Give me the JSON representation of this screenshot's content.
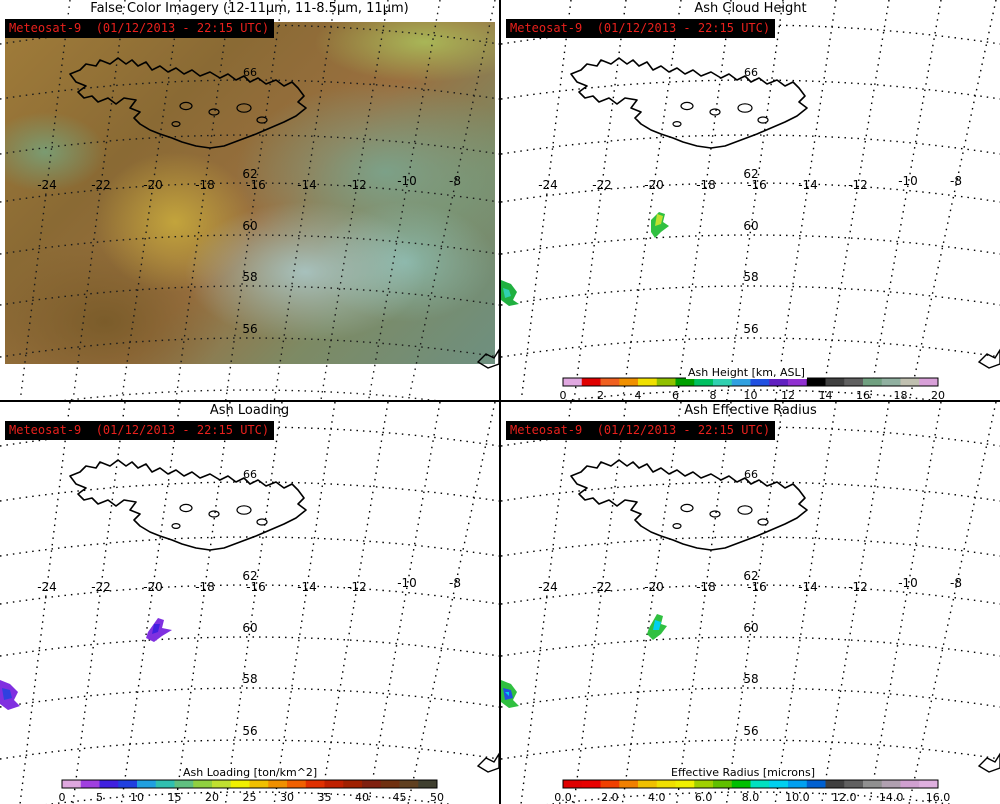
{
  "panels": [
    {
      "id": "p1",
      "title": "False Color Imagery (12-11μm, 11-8.5μm, 11μm)",
      "badge": "Meteosat-9  (01/12/2013 - 22:15 UTC)"
    },
    {
      "id": "p2",
      "title": "Ash Cloud Height",
      "badge": "Meteosat-9  (01/12/2013 - 22:15 UTC)"
    },
    {
      "id": "p3",
      "title": "Ash Loading",
      "badge": "Meteosat-9  (01/12/2013 - 22:15 UTC)"
    },
    {
      "id": "p4",
      "title": "Ash Effective Radius",
      "badge": "Meteosat-9  (01/12/2013 - 22:15 UTC)"
    }
  ],
  "lon_labels": [
    "-24",
    "-22",
    "-20",
    "-18",
    "-16",
    "-14",
    "-12",
    "-10",
    "-8"
  ],
  "lat_labels": [
    "62",
    "60",
    "58",
    "56"
  ],
  "top_lat_label": "66",
  "colorbars": {
    "height": {
      "title": "Ash Height [km, ASL]",
      "ticks": [
        "0",
        "2",
        "4",
        "6",
        "8",
        "10",
        "12",
        "14",
        "16",
        "18",
        "20"
      ],
      "colors": [
        "#e0a8e0",
        "#e00000",
        "#f06020",
        "#f09000",
        "#f0e000",
        "#90c000",
        "#00a000",
        "#00c060",
        "#30d0b0",
        "#30a0e0",
        "#2050e0",
        "#6020c0",
        "#9030d0",
        "#000000",
        "#404040",
        "#606060",
        "#70a080",
        "#90b0a0",
        "#c0c0b0",
        "#d8a0d8"
      ]
    },
    "loading": {
      "title": "Ash Loading [ton/km^2]",
      "ticks": [
        "0",
        "5",
        "10",
        "15",
        "20",
        "25",
        "30",
        "35",
        "40",
        "45",
        "50"
      ],
      "colors": [
        "#e0a8e0",
        "#a040e0",
        "#4020e0",
        "#2040e0",
        "#20a0e0",
        "#30c0b0",
        "#60c080",
        "#90d040",
        "#c0e030",
        "#f0f000",
        "#f0c000",
        "#f09000",
        "#f06000",
        "#e03000",
        "#c02000",
        "#a02000",
        "#802010",
        "#703010",
        "#604020",
        "#404030"
      ]
    },
    "radius": {
      "title": "Effective Radius [microns]",
      "ticks": [
        "0.0",
        "2.0",
        "4.0",
        "6.0",
        "8.0",
        "10.0",
        "12.0",
        "14.0",
        "16.0"
      ],
      "colors": [
        "#e00000",
        "#e80000",
        "#f04000",
        "#f08000",
        "#f0c000",
        "#f0e000",
        "#f0f000",
        "#a0d000",
        "#60c000",
        "#00c000",
        "#00e0c0",
        "#00d0f0",
        "#00a0f0",
        "#0060d0",
        "#404040",
        "#606060",
        "#909090",
        "#b0a0b0",
        "#d0a0d0",
        "#e0b0e0"
      ]
    }
  }
}
